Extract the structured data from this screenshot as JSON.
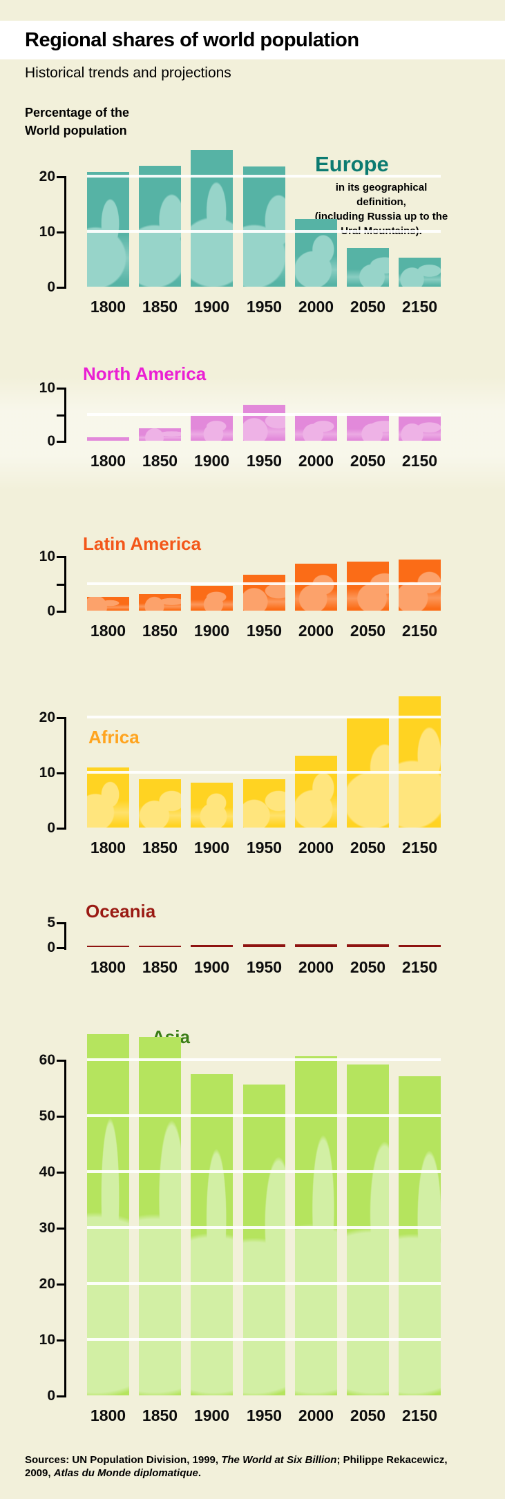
{
  "header": {
    "title": "Regional shares of world population",
    "subtitle": "Historical trends and projections",
    "ylabel_line1": "Percentage of the",
    "ylabel_line2": "World population"
  },
  "background_color": "#f2f0da",
  "chart_data": [
    {
      "id": "europe",
      "type": "bar",
      "title": "Europe",
      "legend_lines": [
        "in its geographical definition,",
        "(including Russia up to the",
        "Ural Mountains)."
      ],
      "categories": [
        "1800",
        "1850",
        "1900",
        "1950",
        "2000",
        "2050",
        "2150"
      ],
      "values": [
        20.8,
        21.9,
        24.7,
        21.7,
        12.2,
        7.0,
        5.3
      ],
      "ylim": [
        0,
        25
      ],
      "yticks": [
        0,
        10,
        20
      ],
      "yticks_labeled": [
        0,
        10,
        20
      ],
      "gridlines": [
        10,
        20
      ],
      "grid": "white horizontal lines over bars",
      "legend_position": "right of plot",
      "colors": {
        "bar": "#56b3a5",
        "overlay": "#97d4c9",
        "title": "#0c7b71"
      }
    },
    {
      "id": "north-america",
      "type": "bar",
      "title": "North America",
      "categories": [
        "1800",
        "1850",
        "1900",
        "1950",
        "2000",
        "2050",
        "2150"
      ],
      "values": [
        0.7,
        2.3,
        5.0,
        6.8,
        5.0,
        4.9,
        4.6
      ],
      "ylim": [
        0,
        10
      ],
      "yticks": [
        0,
        5,
        10
      ],
      "yticks_labeled": [
        0,
        10
      ],
      "gridlines": [
        5
      ],
      "grid": "white horizontal line over bars",
      "legend_position": "title above plot",
      "colors": {
        "bar": "#e289da",
        "overlay": "#eeb2e6",
        "title": "#ea1fd3"
      }
    },
    {
      "id": "latin-america",
      "type": "bar",
      "title": "Latin America",
      "categories": [
        "1800",
        "1850",
        "1900",
        "1950",
        "2000",
        "2050",
        "2150"
      ],
      "values": [
        2.5,
        3.0,
        4.5,
        6.6,
        8.6,
        9.0,
        9.4
      ],
      "ylim": [
        0,
        10
      ],
      "yticks": [
        0,
        5,
        10
      ],
      "yticks_labeled": [
        0,
        10
      ],
      "gridlines": [
        5
      ],
      "grid": "white horizontal line over bars",
      "legend_position": "title above plot",
      "colors": {
        "bar": "#fb6c17",
        "overlay": "#fca26b",
        "title": "#f3571a"
      }
    },
    {
      "id": "africa",
      "type": "bar",
      "title": "Africa",
      "categories": [
        "1800",
        "1850",
        "1900",
        "1950",
        "2000",
        "2050",
        "2150"
      ],
      "values": [
        10.9,
        8.8,
        8.1,
        8.8,
        13.0,
        19.8,
        23.7
      ],
      "ylim": [
        0,
        25
      ],
      "yticks": [
        0,
        10,
        20
      ],
      "yticks_labeled": [
        0,
        10,
        20
      ],
      "gridlines": [
        10,
        20
      ],
      "grid": "white horizontal lines over bars",
      "legend_position": "title above plot",
      "colors": {
        "bar": "#ffd322",
        "overlay": "#ffe57d",
        "title": "#ffa41f"
      }
    },
    {
      "id": "oceania",
      "type": "bar",
      "title": "Oceania",
      "categories": [
        "1800",
        "1850",
        "1900",
        "1950",
        "2000",
        "2050",
        "2150"
      ],
      "values": [
        0.3,
        0.3,
        0.4,
        0.5,
        0.5,
        0.5,
        0.4
      ],
      "ylim": [
        0,
        5
      ],
      "yticks": [
        0,
        5
      ],
      "yticks_labeled": [
        0,
        5
      ],
      "gridlines": [],
      "grid": "none",
      "legend_position": "title above plot",
      "colors": {
        "bar": "#8e1310",
        "overlay": "#8e1310",
        "title": "#9a1a13"
      }
    },
    {
      "id": "asia",
      "type": "bar",
      "title": "Asia",
      "categories": [
        "1800",
        "1850",
        "1900",
        "1950",
        "2000",
        "2050",
        "2150"
      ],
      "values": [
        64.6,
        64.1,
        57.4,
        55.6,
        60.6,
        59.1,
        57.0
      ],
      "ylim": [
        0,
        65
      ],
      "yticks": [
        0,
        10,
        20,
        30,
        40,
        50,
        60
      ],
      "yticks_labeled": [
        0,
        10,
        20,
        30,
        40,
        50,
        60
      ],
      "gridlines": [
        10,
        20,
        30,
        40,
        50,
        60
      ],
      "grid": "white horizontal lines over bars",
      "legend_position": "title above plot",
      "colors": {
        "bar": "#b5e45e",
        "overlay": "#d2efa4",
        "title": "#3b7d17"
      }
    }
  ],
  "sources": {
    "line1": [
      {
        "text": "Sources: UN Population Division, 1999, ",
        "italic": false
      },
      {
        "text": "The World at Six Billion",
        "italic": true
      },
      {
        "text": "; Philippe Rekacewicz,",
        "italic": false
      }
    ],
    "line2": [
      {
        "text": "2009, ",
        "italic": false
      },
      {
        "text": "Atlas du Monde diplomatique",
        "italic": true
      },
      {
        "text": ".",
        "italic": false
      }
    ]
  }
}
